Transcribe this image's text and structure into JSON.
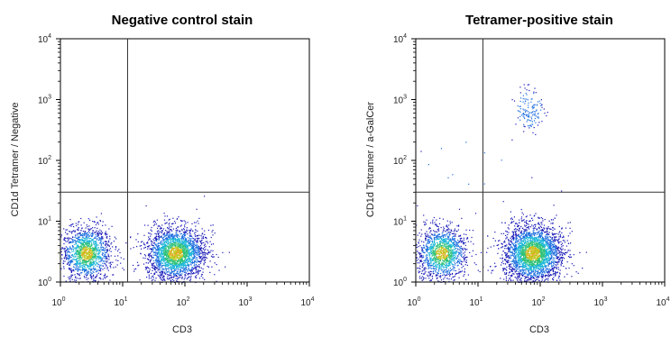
{
  "chart_data": [
    {
      "type": "scatter",
      "subtype": "flow-cytometry-density-plot",
      "title": "Negative control stain",
      "xlabel": "CD3",
      "ylabel": "CD1d Tetramer / Negative",
      "x_scale": "log",
      "y_scale": "log",
      "xlim": [
        1,
        10000
      ],
      "ylim": [
        1,
        10000
      ],
      "x_ticks": [
        {
          "base": "10",
          "exp": "0"
        },
        {
          "base": "10",
          "exp": "1"
        },
        {
          "base": "10",
          "exp": "2"
        },
        {
          "base": "10",
          "exp": "3"
        },
        {
          "base": "10",
          "exp": "4"
        }
      ],
      "y_ticks": [
        {
          "base": "10",
          "exp": "0"
        },
        {
          "base": "10",
          "exp": "1"
        },
        {
          "base": "10",
          "exp": "2"
        },
        {
          "base": "10",
          "exp": "3"
        },
        {
          "base": "10",
          "exp": "4"
        }
      ],
      "quadrant_gate": {
        "x": 12,
        "y": 30
      },
      "populations": [
        {
          "x_center": 2.6,
          "y_center": 3.0,
          "x_spread_decades": 0.2,
          "y_spread_decades": 0.22,
          "count": 1400
        },
        {
          "x_center": 70,
          "y_center": 3.0,
          "x_spread_decades": 0.24,
          "y_spread_decades": 0.22,
          "count": 2300
        }
      ],
      "grid": false,
      "legend": "none"
    },
    {
      "type": "scatter",
      "subtype": "flow-cytometry-density-plot",
      "title": "Tetramer-positive stain",
      "xlabel": "CD3",
      "ylabel": "CD1d Tetramer / a-GalCer",
      "x_scale": "log",
      "y_scale": "log",
      "xlim": [
        1,
        10000
      ],
      "ylim": [
        1,
        10000
      ],
      "x_ticks": [
        {
          "base": "10",
          "exp": "0"
        },
        {
          "base": "10",
          "exp": "1"
        },
        {
          "base": "10",
          "exp": "2"
        },
        {
          "base": "10",
          "exp": "3"
        },
        {
          "base": "10",
          "exp": "4"
        }
      ],
      "y_ticks": [
        {
          "base": "10",
          "exp": "0"
        },
        {
          "base": "10",
          "exp": "1"
        },
        {
          "base": "10",
          "exp": "2"
        },
        {
          "base": "10",
          "exp": "3"
        },
        {
          "base": "10",
          "exp": "4"
        }
      ],
      "quadrant_gate": {
        "x": 12,
        "y": 30
      },
      "populations": [
        {
          "x_center": 2.6,
          "y_center": 3.0,
          "x_spread_decades": 0.2,
          "y_spread_decades": 0.22,
          "count": 1300
        },
        {
          "x_center": 75,
          "y_center": 3.0,
          "x_spread_decades": 0.24,
          "y_spread_decades": 0.24,
          "count": 2800
        },
        {
          "x_center": 65,
          "y_center": 700,
          "x_spread_decades": 0.12,
          "y_spread_decades": 0.18,
          "count": 140
        },
        {
          "x_center": 8,
          "y_center": 100,
          "x_spread_decades": 0.5,
          "y_spread_decades": 0.5,
          "count": 12
        }
      ],
      "grid": false,
      "legend": "none"
    }
  ],
  "colors": {
    "density_scale": [
      "#1a1ab8",
      "#1f6fe0",
      "#20b8d8",
      "#2fc27a",
      "#b8d020",
      "#e8a020"
    ],
    "axes": "#000000",
    "gate_lines": "#333333"
  }
}
